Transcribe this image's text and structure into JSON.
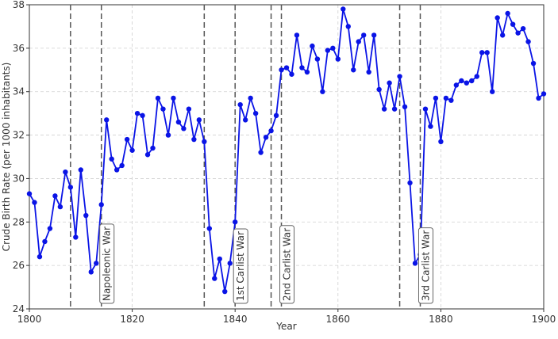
{
  "chart_data": {
    "type": "line",
    "x_label": "Year",
    "y_label": "Crude Birth Rate (per 1000 inhabitants)",
    "x": [
      1800,
      1801,
      1802,
      1803,
      1804,
      1805,
      1806,
      1807,
      1808,
      1809,
      1810,
      1811,
      1812,
      1813,
      1814,
      1815,
      1816,
      1817,
      1818,
      1819,
      1820,
      1821,
      1822,
      1823,
      1824,
      1825,
      1826,
      1827,
      1828,
      1829,
      1830,
      1831,
      1832,
      1833,
      1834,
      1835,
      1836,
      1837,
      1838,
      1839,
      1840,
      1841,
      1842,
      1843,
      1844,
      1845,
      1846,
      1847,
      1848,
      1849,
      1850,
      1851,
      1852,
      1853,
      1854,
      1855,
      1856,
      1857,
      1858,
      1859,
      1860,
      1861,
      1862,
      1863,
      1864,
      1865,
      1866,
      1867,
      1868,
      1869,
      1870,
      1871,
      1872,
      1873,
      1874,
      1875,
      1876,
      1877,
      1878,
      1879,
      1880,
      1881,
      1882,
      1883,
      1884,
      1885,
      1886,
      1887,
      1888,
      1889,
      1890,
      1891,
      1892,
      1893,
      1894,
      1895,
      1896,
      1897,
      1898,
      1899,
      1900
    ],
    "series": [
      {
        "color": "#0a14e6",
        "values": [
          29.3,
          28.9,
          26.4,
          27.1,
          27.7,
          29.2,
          28.7,
          30.3,
          29.6,
          27.3,
          30.4,
          28.3,
          25.7,
          26.1,
          28.8,
          32.7,
          30.9,
          30.4,
          30.6,
          31.8,
          31.3,
          33.0,
          32.9,
          31.1,
          31.4,
          33.7,
          33.2,
          32.0,
          33.7,
          32.6,
          32.3,
          33.2,
          31.8,
          32.7,
          31.7,
          27.7,
          25.4,
          26.3,
          24.8,
          26.1,
          28.0,
          33.4,
          32.7,
          33.7,
          33.0,
          31.2,
          31.9,
          32.2,
          32.9,
          35.0,
          35.1,
          34.8,
          36.6,
          35.1,
          34.9,
          36.1,
          35.5,
          34.0,
          35.9,
          36.0,
          35.5,
          37.8,
          37.0,
          35.0,
          36.3,
          36.6,
          34.9,
          36.6,
          34.1,
          33.2,
          34.4,
          33.2,
          34.7,
          33.3,
          29.8,
          26.1,
          26.5,
          33.2,
          32.4,
          33.7,
          31.7,
          33.7,
          33.6,
          34.3,
          34.5,
          34.4,
          34.5,
          34.7,
          35.8,
          35.8,
          34.0,
          37.4,
          36.6,
          37.6,
          37.1,
          36.7,
          36.9,
          36.3,
          35.3,
          33.7,
          33.9
        ]
      }
    ],
    "xlim": [
      1800,
      1900
    ],
    "xticks": [
      1800,
      1820,
      1840,
      1860,
      1880,
      1900
    ],
    "ylim": [
      24,
      38
    ],
    "yticks": [
      24,
      26,
      28,
      30,
      32,
      34,
      36,
      38
    ],
    "grid": true,
    "event_lines": [
      1808,
      1814,
      1834,
      1840,
      1847,
      1849,
      1872,
      1876
    ],
    "annotations": [
      {
        "x": 1814,
        "text": "Napoleonic War"
      },
      {
        "x": 1840,
        "text": "1st Carlist War"
      },
      {
        "x": 1849,
        "text": "2nd Carlist War"
      },
      {
        "x": 1876,
        "text": "3rd Carlist War"
      }
    ]
  }
}
